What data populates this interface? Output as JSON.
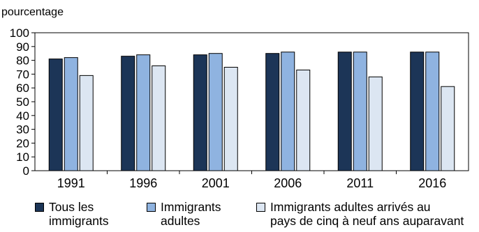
{
  "chart_data": {
    "type": "bar",
    "ylabel": "pourcentage",
    "categories": [
      "1991",
      "1996",
      "2001",
      "2006",
      "2011",
      "2016"
    ],
    "ylim": [
      0,
      100
    ],
    "yticks": [
      0,
      10,
      20,
      30,
      40,
      50,
      60,
      70,
      80,
      90,
      100
    ],
    "grid": false,
    "legend_placement": "bottom",
    "series": [
      {
        "name": "Tous les immigrants",
        "color": "#1c3557",
        "values": [
          81,
          83,
          84,
          85,
          86,
          86
        ]
      },
      {
        "name": "Immigrants adultes",
        "color": "#8fb3e0",
        "values": [
          82,
          84,
          85,
          86,
          86,
          86
        ]
      },
      {
        "name": "Immigrants adultes arrivés au pays de cinq à neuf ans auparavant",
        "color": "#dce6f2",
        "values": [
          69,
          76,
          75,
          73,
          68,
          61
        ]
      }
    ]
  },
  "legend": [
    {
      "lines": [
        "Tous les",
        "immigrants"
      ]
    },
    {
      "lines": [
        "Immigrants",
        "adultes"
      ]
    },
    {
      "lines": [
        "Immigrants adultes arrivés au",
        "pays de cinq à neuf ans auparavant"
      ]
    }
  ]
}
